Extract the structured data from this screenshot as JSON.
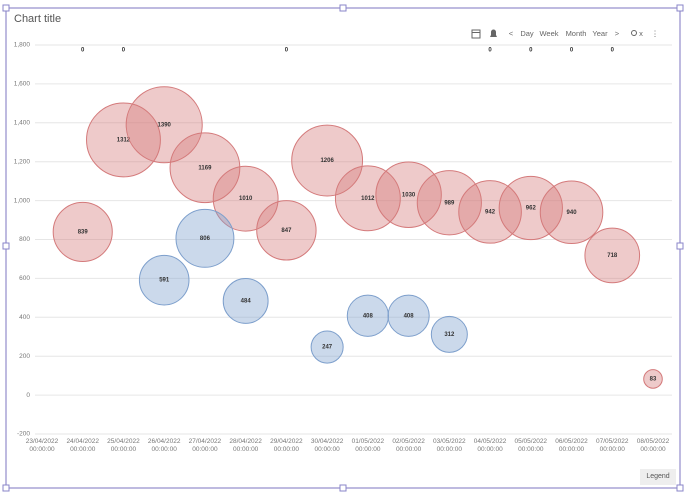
{
  "chart_data": {
    "type": "bubble",
    "title": "Chart title",
    "categories": [
      "23/04/2022 00:00:00",
      "24/04/2022 00:00:00",
      "25/04/2022 00:00:00",
      "26/04/2022 00:00:00",
      "27/04/2022 00:00:00",
      "28/04/2022 00:00:00",
      "29/04/2022 00:00:00",
      "30/04/2022 00:00:00",
      "01/05/2022 00:00:00",
      "02/05/2022 00:00:00",
      "03/05/2022 00:00:00",
      "04/05/2022 00:00:00",
      "05/05/2022 00:00:00",
      "06/05/2022 00:00:00",
      "07/05/2022 00:00:00",
      "08/05/2022 00:00:00"
    ],
    "series": [
      {
        "color": "#d47a7b",
        "values": [
          null,
          839,
          1312,
          1390,
          1169,
          1010,
          847,
          1206,
          1012,
          1030,
          989,
          942,
          962,
          940,
          718,
          83
        ]
      },
      {
        "color": "#7d9fcc",
        "values": [
          null,
          null,
          null,
          591,
          806,
          484,
          null,
          247,
          408,
          408,
          312,
          null,
          null,
          null,
          null,
          null
        ]
      },
      {
        "color": "#555555",
        "values": [
          null,
          0,
          0,
          null,
          null,
          null,
          0,
          null,
          null,
          null,
          null,
          0,
          0,
          0,
          0,
          null
        ]
      }
    ],
    "ylim": [
      -200,
      1800
    ],
    "yticks": [
      -200,
      0,
      200,
      400,
      600,
      800,
      {
        "value": 1000,
        "label": "1,000"
      },
      {
        "value": 1200,
        "label": "1,200"
      },
      {
        "value": 1400,
        "label": "1,400"
      },
      {
        "value": 1600,
        "label": "1,600"
      },
      {
        "value": 1800,
        "label": "1,800"
      }
    ],
    "grid": true
  },
  "toolbar": {
    "buttons": [
      "<",
      "Day",
      "Week",
      "Month",
      "Year",
      ">",
      "x",
      "⋮"
    ]
  },
  "legend_button": "Legend"
}
